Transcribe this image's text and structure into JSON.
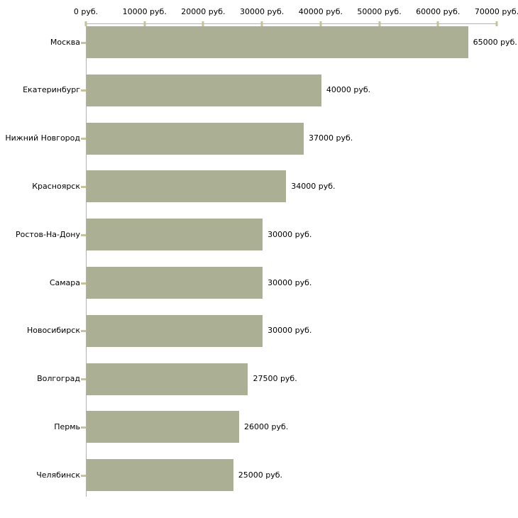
{
  "chart_data": {
    "type": "bar",
    "orientation": "horizontal",
    "title": "",
    "xlabel": "",
    "ylabel": "",
    "unit": "руб.",
    "categories": [
      "Москва",
      "Екатеринбург",
      "Нижний Новгород",
      "Красноярск",
      "Ростов-На-Дону",
      "Самара",
      "Новосибирск",
      "Волгоград",
      "Пермь",
      "Челябинск"
    ],
    "values": [
      65000,
      40000,
      37000,
      34000,
      30000,
      30000,
      30000,
      27500,
      26000,
      25000
    ],
    "value_labels": [
      "65000 руб.",
      "40000 руб.",
      "37000 руб.",
      "34000 руб.",
      "30000 руб.",
      "30000 руб.",
      "30000 руб.",
      "27500 руб.",
      "26000 руб.",
      "25000 руб."
    ],
    "x_tick_values": [
      0,
      10000,
      20000,
      30000,
      40000,
      50000,
      60000,
      70000
    ],
    "x_tick_labels": [
      "0 руб.",
      "10000 руб.",
      "20000 руб.",
      "30000 руб.",
      "40000 руб.",
      "50000 руб.",
      "60000 руб.",
      "70000 руб."
    ],
    "xlim": [
      0,
      70000
    ],
    "grid": false,
    "legend": false,
    "colors": {
      "bar_fill": "#abb094",
      "axis_line": "#b3b3b3",
      "tick_mark": "#c6c39a",
      "text": "#000000",
      "background": "#ffffff"
    }
  }
}
